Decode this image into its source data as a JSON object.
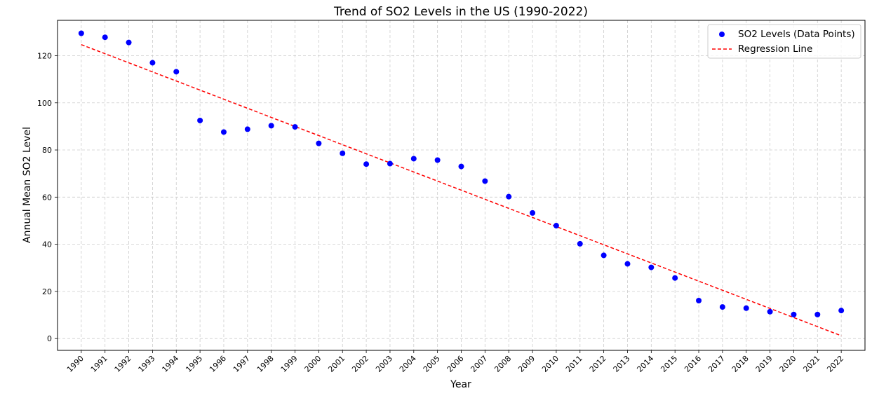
{
  "chart_data": {
    "type": "scatter",
    "title": "Trend of SO2 Levels in the US (1990-2022)",
    "xlabel": "Year",
    "ylabel": "Annual Mean SO2 Level",
    "xlim": [
      1989,
      2023
    ],
    "ylim": [
      -5,
      135
    ],
    "yticks": [
      0,
      20,
      40,
      60,
      80,
      100,
      120
    ],
    "grid": true,
    "legend_position": "top-right",
    "series": [
      {
        "name": "SO2 Levels (Data Points)",
        "type": "scatter",
        "color": "#0000ff",
        "x": [
          1990,
          1991,
          1992,
          1993,
          1994,
          1995,
          1996,
          1997,
          1998,
          1999,
          2000,
          2001,
          2002,
          2003,
          2004,
          2005,
          2006,
          2007,
          2008,
          2009,
          2010,
          2011,
          2012,
          2013,
          2014,
          2015,
          2016,
          2017,
          2018,
          2019,
          2020,
          2021,
          2022
        ],
        "y": [
          129.5,
          127.8,
          125.6,
          117.0,
          113.2,
          92.5,
          87.6,
          88.8,
          90.3,
          89.8,
          82.8,
          78.6,
          74.0,
          74.2,
          76.3,
          75.7,
          73.0,
          66.8,
          60.2,
          53.3,
          47.9,
          40.2,
          35.3,
          31.7,
          30.2,
          25.7,
          16.1,
          13.4,
          12.9,
          11.4,
          10.2,
          10.2,
          11.9
        ]
      },
      {
        "name": "Regression Line",
        "type": "line",
        "style": "dashed",
        "color": "#ff0000",
        "x": [
          1990,
          2022
        ],
        "y": [
          124.7,
          1.2
        ]
      }
    ]
  }
}
